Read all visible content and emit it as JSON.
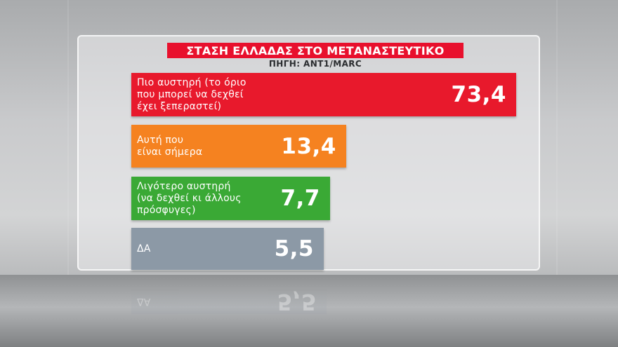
{
  "chart_data": {
    "type": "bar",
    "orientation": "horizontal",
    "title": "ΣΤΑΣΗ ΕΛΛΑΔΑΣ ΣΤΟ ΜΕΤΑΝΑΣΤΕΥΤΙΚΟ",
    "subtitle": "ΠΗΓΗ: ANT1/MARC",
    "categories": [
      "Πιο αυστηρή (το όριο\nπου μπορεί να δεχθεί\nέχει ξεπεραστεί)",
      "Αυτή που\nείναι σήμερα",
      "Λιγότερο αυστηρή\n(να δεχθεί κι άλλους\nπρόσφυγες)",
      "ΔΑ"
    ],
    "values": [
      73.4,
      13.4,
      7.7,
      5.5
    ],
    "value_labels": [
      "73,4",
      "13,4",
      "7,7",
      "5,5"
    ],
    "colors": [
      "#e8192c",
      "#f58220",
      "#3aa935",
      "#8c99a6"
    ],
    "xlim": [
      0,
      73.4
    ],
    "grid": false,
    "legend": "none"
  }
}
